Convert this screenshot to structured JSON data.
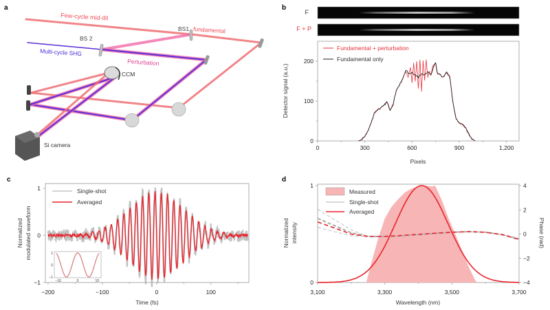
{
  "panels": {
    "a": {
      "label": "a",
      "labels": {
        "few_cycle": "Few-cycle mid-IR",
        "bs1": "BS1",
        "fundamental": "fundamental",
        "bs2": "BS 2",
        "shg": "Multi-cycle SHG",
        "perturbation": "Perturbation",
        "ccm": "CCM",
        "camera": "Si camera"
      },
      "colors": {
        "fundamental": "#ee4b55",
        "shg": "#4b2bd6",
        "perturbation": "#e0408f"
      }
    },
    "b": {
      "label": "b",
      "strip_labels": [
        "F",
        "F + P"
      ]
    },
    "c": {
      "label": "c"
    },
    "d": {
      "label": "d"
    }
  },
  "chart_data": [
    {
      "id": "b",
      "type": "line",
      "title": "",
      "xlabel": "Pixels",
      "ylabel": "Detector signal (a.u.)",
      "xlim": [
        0,
        1280
      ],
      "ylim": [
        0,
        250
      ],
      "xticks": [
        0,
        300,
        600,
        900,
        1200
      ],
      "xtick_labels": [
        "0",
        "300",
        "600",
        "900",
        "1,200"
      ],
      "yticks": [
        0,
        100,
        200
      ],
      "ytick_labels": [
        "0",
        "100",
        "200"
      ],
      "legend": "top-left",
      "series": [
        {
          "name": "Fundamental + perturbation",
          "color": "#e8323c",
          "x": [
            260,
            280,
            300,
            320,
            340,
            360,
            380,
            400,
            420,
            440,
            460,
            480,
            500,
            520,
            540,
            560,
            575,
            590,
            600,
            610,
            620,
            630,
            640,
            650,
            660,
            670,
            680,
            690,
            700,
            710,
            720,
            730,
            740,
            750,
            760,
            780,
            800,
            820,
            840,
            860,
            880,
            900,
            920,
            940,
            960,
            980,
            1000
          ],
          "y": [
            0,
            3,
            12,
            25,
            45,
            70,
            78,
            82,
            88,
            98,
            78,
            92,
            128,
            140,
            155,
            175,
            160,
            185,
            145,
            195,
            150,
            200,
            130,
            205,
            125,
            200,
            150,
            205,
            160,
            175,
            165,
            185,
            190,
            195,
            170,
            165,
            160,
            172,
            160,
            95,
            55,
            45,
            42,
            32,
            18,
            6,
            0
          ]
        },
        {
          "name": "Fundamental only",
          "color": "#222222",
          "x": [
            260,
            280,
            300,
            320,
            340,
            360,
            380,
            400,
            420,
            440,
            460,
            480,
            500,
            520,
            540,
            560,
            580,
            600,
            620,
            640,
            660,
            680,
            700,
            720,
            740,
            750,
            760,
            780,
            800,
            820,
            840,
            860,
            880,
            900,
            920,
            940,
            960,
            980,
            1000
          ],
          "y": [
            0,
            3,
            12,
            25,
            45,
            70,
            78,
            82,
            88,
            98,
            78,
            92,
            128,
            140,
            155,
            178,
            168,
            172,
            165,
            160,
            170,
            165,
            172,
            165,
            190,
            195,
            170,
            165,
            160,
            172,
            160,
            95,
            55,
            45,
            42,
            32,
            18,
            6,
            0
          ]
        }
      ],
      "images": [
        {
          "label": "F",
          "bright_range_pixels": [
            260,
            1000
          ]
        },
        {
          "label": "F + P",
          "bright_range_pixels": [
            260,
            1000
          ]
        }
      ]
    },
    {
      "id": "c",
      "type": "line",
      "title": "",
      "xlabel": "Time (fs)",
      "ylabel": "Normalized modulated waveform",
      "xlim": [
        -205,
        170
      ],
      "ylim": [
        -1,
        1
      ],
      "xticks": [
        -200,
        -100,
        0,
        100
      ],
      "xtick_labels": [
        "−200",
        "−100",
        "0",
        "100"
      ],
      "yticks": [
        -1,
        0,
        1
      ],
      "ytick_labels": [
        "−1",
        "0",
        "1"
      ],
      "legend": "top-left",
      "series": [
        {
          "name": "Single-shot",
          "color": "#a8a8a8",
          "model": "gaussian-carrier",
          "center_fs": 0,
          "period_fs": 11.5,
          "envelope_fwhm_fs": 120,
          "amplitude": 1.0,
          "noise": 0.12
        },
        {
          "name": "Averaged",
          "color": "#e8232c",
          "model": "gaussian-carrier",
          "center_fs": 0,
          "period_fs": 11.5,
          "envelope_fwhm_fs": 120,
          "amplitude": 0.93,
          "noise": 0.03
        }
      ],
      "inset": {
        "type": "line",
        "xlim": [
          -12,
          12
        ],
        "ylim": [
          -1,
          1
        ],
        "xticks": [
          -10,
          0,
          10
        ],
        "xtick_labels": [
          "−10",
          "0",
          "10"
        ],
        "yticks": [
          -1,
          0,
          1
        ],
        "ytick_labels": [
          "−1",
          "0",
          "1"
        ],
        "series": [
          {
            "name": "cosine",
            "color": "#d98a8a",
            "period": 11.5
          }
        ]
      }
    },
    {
      "id": "d",
      "type": "area",
      "title": "",
      "xlabel": "Wavelength (nm)",
      "ylabel": "Normalized intensity",
      "ylabel_right": "Phase (rad)",
      "xlim": [
        3100,
        3700
      ],
      "ylim": [
        0,
        1
      ],
      "ylim_right": [
        -4,
        4
      ],
      "xticks": [
        3100,
        3300,
        3500,
        3700
      ],
      "xtick_labels": [
        "3,100",
        "3,300",
        "3,500",
        "3,700"
      ],
      "yticks": [
        0,
        1
      ],
      "ytick_labels": [
        "0",
        "1"
      ],
      "yticks_right": [
        -4,
        -2,
        0,
        2,
        4
      ],
      "ytick_labels_right": [
        "−4",
        "−2",
        "0",
        "2",
        "4"
      ],
      "legend": "top-left",
      "series": [
        {
          "name": "Measured",
          "color": "#f7b5b5",
          "kind": "area",
          "x": [
            3245,
            3260,
            3280,
            3300,
            3320,
            3340,
            3360,
            3380,
            3400,
            3420,
            3440,
            3450,
            3470,
            3490,
            3510,
            3530,
            3550,
            3570,
            3575
          ],
          "y": [
            0,
            0.2,
            0.45,
            0.66,
            0.78,
            0.86,
            0.93,
            0.97,
            0.99,
            1.0,
            0.99,
            1.0,
            0.85,
            0.66,
            0.5,
            0.33,
            0.16,
            0.02,
            0
          ]
        },
        {
          "name": "Single-shot",
          "color": "#b0b0b0",
          "kind": "line-dashed-phase",
          "x": [
            3100,
            3150,
            3200,
            3250,
            3300,
            3350,
            3400,
            3450,
            3500,
            3550,
            3600,
            3650,
            3700
          ],
          "y_rad": [
            1.3,
            0.7,
            0.1,
            -0.2,
            -0.2,
            -0.15,
            -0.05,
            0.05,
            0.15,
            0.2,
            0.15,
            -0.05,
            -0.4
          ]
        },
        {
          "name": "Averaged",
          "color": "#e8232c",
          "kind": "line",
          "model": "gaussian",
          "center_nm": 3410,
          "fwhm_nm": 185,
          "amplitude": 1.0
        },
        {
          "name": "Averaged phase",
          "color": "#e8232c",
          "kind": "line-dashed-phase",
          "x": [
            3100,
            3150,
            3200,
            3250,
            3300,
            3350,
            3400,
            3450,
            3500,
            3550,
            3600,
            3650,
            3700
          ],
          "y_rad": [
            1.0,
            0.5,
            0.0,
            -0.2,
            -0.2,
            -0.12,
            -0.02,
            0.07,
            0.15,
            0.2,
            0.15,
            -0.05,
            -0.45
          ]
        }
      ]
    }
  ]
}
